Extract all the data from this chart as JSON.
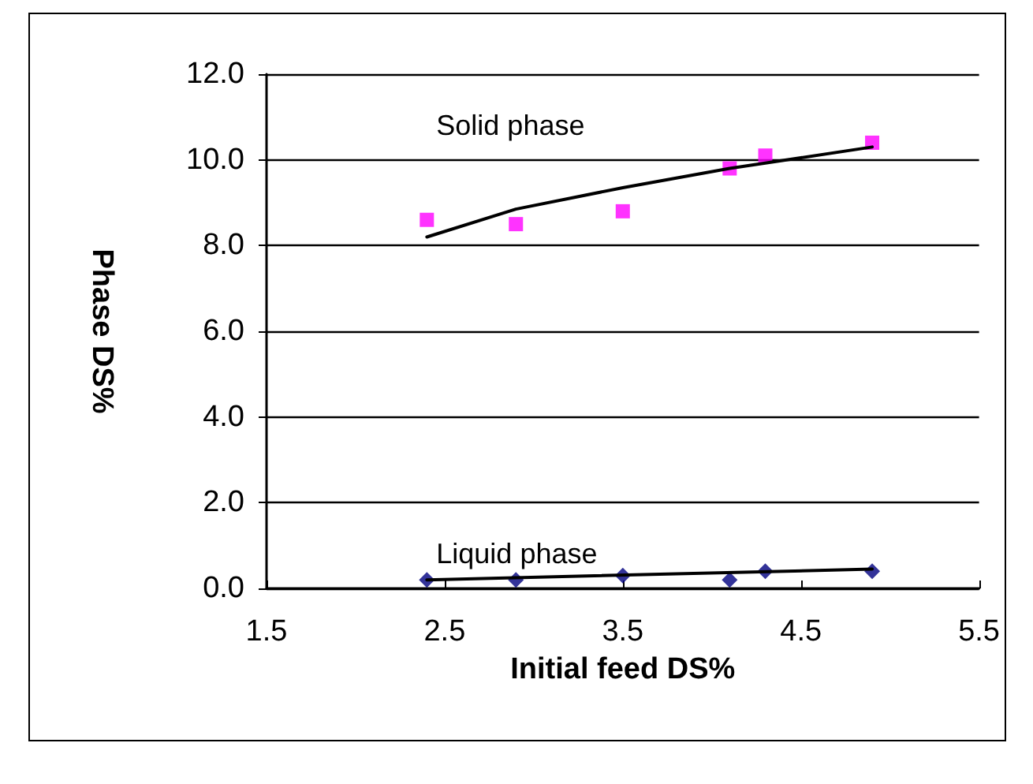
{
  "chart_data": {
    "type": "scatter",
    "xlabel": "Initial feed DS%",
    "ylabel": "Phase DS%",
    "xlim": [
      1.5,
      5.5
    ],
    "xticks": [
      1.5,
      2.5,
      3.5,
      4.5,
      5.5
    ],
    "ylim": [
      0,
      12
    ],
    "yticks": [
      {
        "value": 0,
        "label": "0.0"
      },
      {
        "value": 2,
        "label": "2.0"
      },
      {
        "value": 4,
        "label": "4.0"
      },
      {
        "value": 6,
        "label": "6.0"
      },
      {
        "value": 8,
        "label": "8.0"
      },
      {
        "value": 10,
        "label": "10.0"
      },
      {
        "value": 12,
        "label": "12.0"
      }
    ],
    "grid": "y",
    "series": [
      {
        "name": "Solid phase",
        "marker": "square",
        "color": "#ff00ff",
        "x": [
          2.4,
          2.9,
          3.5,
          4.1,
          4.3,
          4.9
        ],
        "values": [
          8.6,
          8.5,
          8.8,
          9.8,
          10.1,
          10.4
        ]
      },
      {
        "type": "line",
        "marker": "none",
        "color": "#000000",
        "x": [
          2.4,
          2.9,
          3.5,
          4.1,
          4.5,
          4.9
        ],
        "values": [
          8.2,
          8.85,
          9.35,
          9.8,
          10.05,
          10.3
        ]
      },
      {
        "name": "Liquid phase",
        "marker": "diamond",
        "color": "#000080",
        "x": [
          2.4,
          2.9,
          3.5,
          4.1,
          4.3,
          4.9
        ],
        "values": [
          0.2,
          0.2,
          0.3,
          0.2,
          0.4,
          0.4
        ]
      },
      {
        "type": "line",
        "marker": "none",
        "color": "#000000",
        "x": [
          2.4,
          4.9
        ],
        "values": [
          0.2,
          0.45
        ]
      }
    ]
  }
}
